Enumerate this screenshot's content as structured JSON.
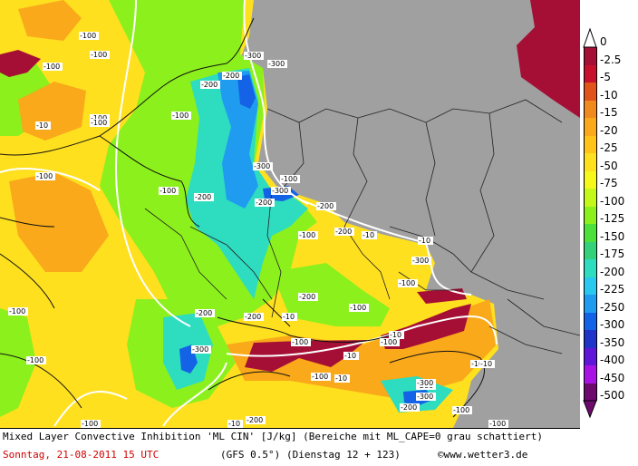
{
  "legend": {
    "colors": {
      "0": "#ffffff",
      "-2.5": "#a50f35",
      "-5": "#c8102e",
      "-10": "#e0531a",
      "-15": "#f08a1e",
      "-20": "#f9a91a",
      "-25": "#ffc417",
      "-50": "#ffe01f",
      "-75": "#f6f81a",
      "-100": "#c4f81a",
      "-125": "#8cf01c",
      "-150": "#4ce03a",
      "-175": "#33d27a",
      "-200": "#2edcc0",
      "-225": "#28c8ef",
      "-250": "#1f9cf0",
      "-300": "#1463e6",
      "-350": "#2134c8",
      "-400": "#6016d8",
      "-450": "#a812e4",
      "-500": "#6e0a6e"
    },
    "labels": [
      "0",
      "-2.5",
      "-5",
      "-10",
      "-15",
      "-20",
      "-25",
      "-50",
      "-75",
      "-100",
      "-125",
      "-150",
      "-175",
      "-200",
      "-225",
      "-250",
      "-300",
      "-350",
      "-400",
      "-450",
      "-500"
    ]
  },
  "map": {
    "background_grey": "#a0a0a0",
    "contour_labels": [
      "-100",
      "-100",
      "-100",
      "-100",
      "-100",
      "-100",
      "-100",
      "-100",
      "-100",
      "-100",
      "-100",
      "-100",
      "-100",
      "-100",
      "-100",
      "-100",
      "-100",
      "-100",
      "-100",
      "-100",
      "-100",
      "-10",
      "-10",
      "-10",
      "-10",
      "-10",
      "-10",
      "-10",
      "-10",
      "-10",
      "-200",
      "-200",
      "-200",
      "-200",
      "-200",
      "-200",
      "-200",
      "-200",
      "-200",
      "-200",
      "-200",
      "-200",
      "-300",
      "-300",
      "-300",
      "-300",
      "-300",
      "-300",
      "-300",
      "-300"
    ]
  },
  "footer": {
    "title": "Mixed Layer Convective Inhibition 'ML CIN' [J/kg] (Bereiche mit ML_CAPE=0 grau schattiert)",
    "date": "Sonntag, 21-08-2011  15 UTC",
    "model": "(GFS 0.5°)",
    "run": "(Dienstag 12 + 123)",
    "credit": "©www.wetter3.de"
  }
}
